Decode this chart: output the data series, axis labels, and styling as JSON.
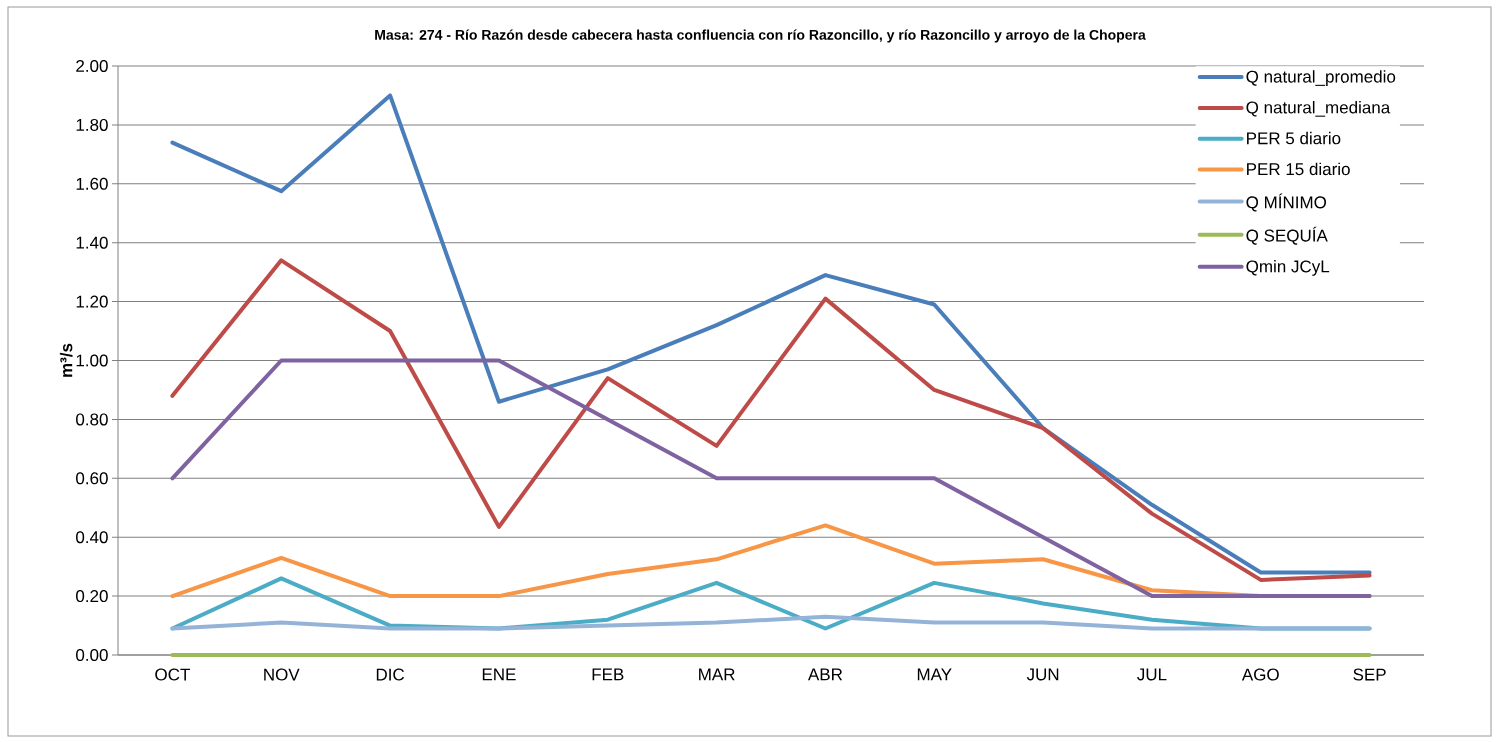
{
  "chart_data": {
    "type": "line",
    "title": "Masa: 274 - Río Razón desde cabecera hasta confluencia con río Razoncillo, y río Razoncillo y arroyo de la Chopera",
    "ylabel": "m³/s",
    "categories": [
      "OCT",
      "NOV",
      "DIC",
      "ENE",
      "FEB",
      "MAR",
      "ABR",
      "MAY",
      "JUN",
      "JUL",
      "AGO",
      "SEP"
    ],
    "ylim": [
      0,
      2
    ],
    "yticks": [
      {
        "value": 0,
        "label": "0.00"
      },
      {
        "value": 0.2,
        "label": "0.20"
      },
      {
        "value": 0.4,
        "label": "0.40"
      },
      {
        "value": 0.6,
        "label": "0.60"
      },
      {
        "value": 0.8,
        "label": "0.80"
      },
      {
        "value": 1,
        "label": "1.00"
      },
      {
        "value": 1.2,
        "label": "1.20"
      },
      {
        "value": 1.4,
        "label": "1.40"
      },
      {
        "value": 1.6,
        "label": "1.60"
      },
      {
        "value": 1.8,
        "label": "1.80"
      },
      {
        "value": 2,
        "label": "2.00"
      }
    ],
    "grid": "y",
    "legend": "top right",
    "marker": "none",
    "line_style": "solid",
    "series": [
      {
        "name": "Q natural_promedio",
        "color": "#4a7ebb",
        "values": [
          1.74,
          1.575,
          1.9,
          0.86,
          0.97,
          1.12,
          1.29,
          1.19,
          0.77,
          0.51,
          0.28,
          0.28
        ]
      },
      {
        "name": "Q natural_mediana",
        "color": "#be4b48",
        "values": [
          0.88,
          1.34,
          1.1,
          0.435,
          0.94,
          0.71,
          1.21,
          0.9,
          0.77,
          0.48,
          0.255,
          0.27
        ]
      },
      {
        "name": "PER 5 diario",
        "color": "#4bacc6",
        "values": [
          0.09,
          0.26,
          0.1,
          0.09,
          0.12,
          0.245,
          0.09,
          0.245,
          0.175,
          0.12,
          0.09,
          0.09
        ]
      },
      {
        "name": "PER 15 diario",
        "color": "#f79646",
        "values": [
          0.2,
          0.33,
          0.2,
          0.2,
          0.275,
          0.325,
          0.44,
          0.31,
          0.325,
          0.22,
          0.2,
          0.2
        ]
      },
      {
        "name": "Q MÍNIMO",
        "color": "#95b3d7",
        "values": [
          0.09,
          0.11,
          0.09,
          0.09,
          0.1,
          0.11,
          0.13,
          0.11,
          0.11,
          0.09,
          0.09,
          0.09
        ]
      },
      {
        "name": "Q SEQUÍA",
        "color": "#9bbb59",
        "values": [
          0,
          0,
          0,
          0,
          0,
          0,
          0,
          0,
          0,
          0,
          0,
          0
        ]
      },
      {
        "name": "Qmin JCyL",
        "color": "#7f63a1",
        "values": [
          0.6,
          1,
          1,
          1,
          0.8,
          0.6,
          0.6,
          0.6,
          0.4,
          0.2,
          0.2,
          0.2
        ]
      }
    ]
  }
}
